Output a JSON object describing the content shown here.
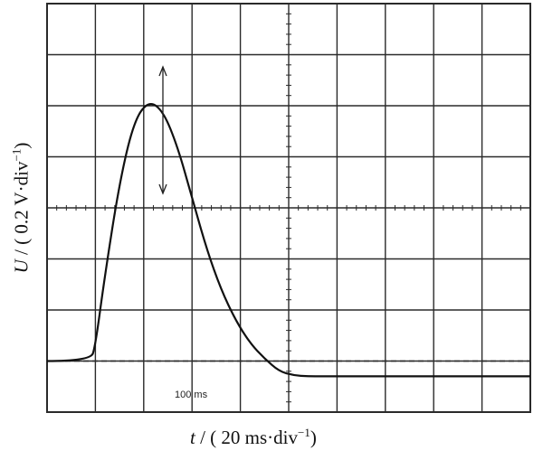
{
  "chart_data": {
    "type": "line",
    "title": "",
    "xlabel": {
      "var": "t",
      "unit_pre": " / ( 20 ms·div",
      "sup": "−1",
      "unit_post": ")"
    },
    "ylabel": {
      "var": "U",
      "unit_pre": " / ( 0.2 V·div",
      "sup": "−1",
      "unit_post": ")"
    },
    "x_divisions": 10,
    "y_divisions": 8,
    "grid": true,
    "xlim": [
      0,
      10
    ],
    "ylim": [
      -1,
      7
    ],
    "annotation": "100 ms",
    "series": [
      {
        "x": [
          0,
          0.9,
          1.0,
          1.2,
          1.5,
          1.8,
          2.1,
          2.4,
          2.7,
          3.0,
          3.3,
          3.6,
          3.9,
          4.2,
          4.5,
          4.8,
          5.1,
          5.4,
          5.7,
          10
        ],
        "y": [
          0,
          0,
          0.3,
          1.7,
          3.5,
          4.7,
          5.1,
          4.9,
          4.2,
          3.2,
          2.2,
          1.4,
          0.8,
          0.35,
          0.05,
          -0.2,
          -0.28,
          -0.3,
          -0.3,
          -0.3
        ]
      }
    ]
  },
  "colors": {
    "trace": "#111111",
    "grid": "#2a2a2a",
    "background": "#ffffff"
  }
}
